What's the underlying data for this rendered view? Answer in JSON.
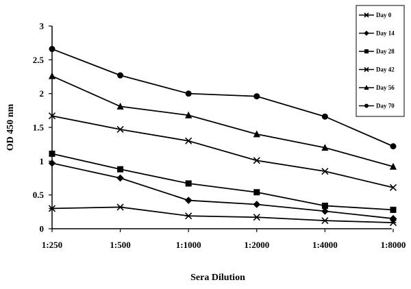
{
  "chart_data": {
    "type": "line",
    "title": "",
    "xlabel": "Sera Dilution",
    "ylabel": "OD 450 nm",
    "categories": [
      "1:250",
      "1:500",
      "1:1000",
      "1:2000",
      "1:4000",
      "1:8000"
    ],
    "ylim": [
      0,
      3
    ],
    "yticks": [
      "0",
      "0.5",
      "1",
      "1.5",
      "2",
      "2.5",
      "3"
    ],
    "grid": false,
    "legend_position": "top-right",
    "series": [
      {
        "name": "Day 0",
        "marker": "star",
        "values": [
          0.3,
          0.32,
          0.19,
          0.17,
          0.12,
          0.09
        ]
      },
      {
        "name": "Day 14",
        "marker": "diamond",
        "values": [
          0.97,
          0.75,
          0.42,
          0.36,
          0.26,
          0.15
        ]
      },
      {
        "name": "Day 28",
        "marker": "square",
        "values": [
          1.11,
          0.88,
          0.67,
          0.54,
          0.34,
          0.28
        ]
      },
      {
        "name": "Day 42",
        "marker": "x",
        "values": [
          1.67,
          1.47,
          1.3,
          1.01,
          0.85,
          0.61
        ]
      },
      {
        "name": "Day 56",
        "marker": "triangle",
        "values": [
          2.26,
          1.81,
          1.68,
          1.4,
          1.2,
          0.92
        ]
      },
      {
        "name": "Day 70",
        "marker": "circle",
        "values": [
          2.66,
          2.27,
          2.0,
          1.96,
          1.66,
          1.22
        ]
      }
    ]
  }
}
